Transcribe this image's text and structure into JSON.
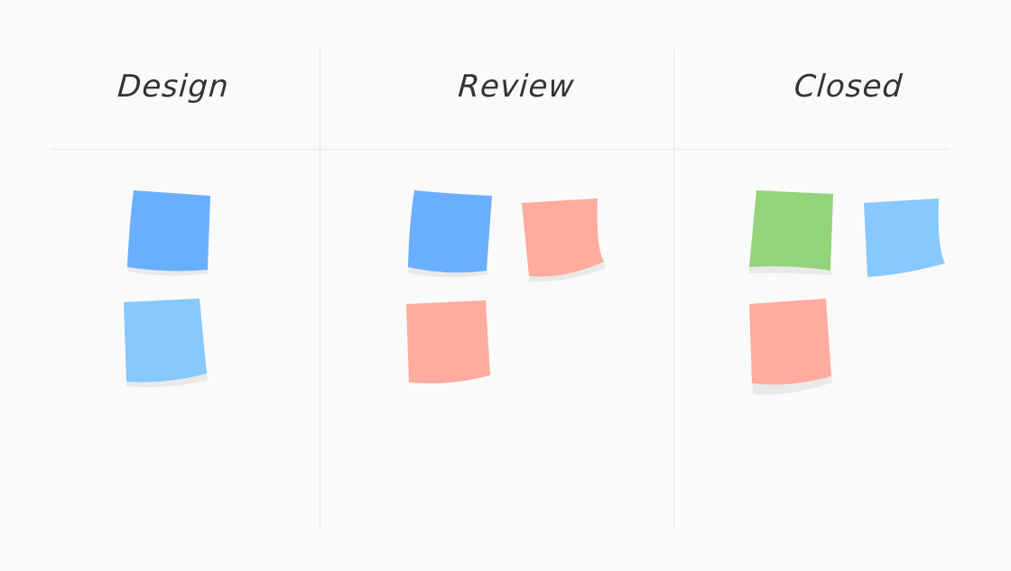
{
  "board": {
    "columns": [
      {
        "title": "Design",
        "notes": [
          {
            "color": "#6aafff"
          },
          {
            "color": "#87c8ff"
          }
        ]
      },
      {
        "title": "Review",
        "notes": [
          {
            "color": "#6aafff"
          },
          {
            "color": "#ffab9d"
          },
          {
            "color": "#ffab9d"
          }
        ]
      },
      {
        "title": "Closed",
        "notes": [
          {
            "color": "#93d47a"
          },
          {
            "color": "#87c8ff"
          },
          {
            "color": "#ffab9d"
          }
        ]
      }
    ],
    "shadow_color": "#e9e9e9",
    "line_color": "#e6e6e6"
  }
}
